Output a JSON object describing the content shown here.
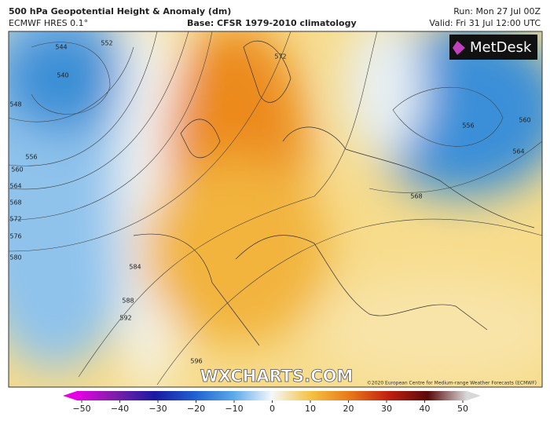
{
  "header": {
    "title": "500 hPa Geopotential Height & Anomaly (dm)",
    "model": "ECMWF HRES 0.1°",
    "base": "Base: CFSR 1979-2010 climatology",
    "run": "Run: Mon 27 Jul 00Z",
    "valid": "Valid: Fri 31 Jul 12:00 UTC"
  },
  "logo": "MetDesk",
  "watermark": "WXCHARTS.COM",
  "copyright": "©2020 European Centre for Medium-range Weather Forecasts (ECMWF)",
  "contour_labels": [
    "544",
    "540",
    "552",
    "548",
    "556",
    "560",
    "564",
    "568",
    "572",
    "576",
    "580",
    "584",
    "588",
    "592",
    "596",
    "572",
    "556",
    "560",
    "564",
    "568"
  ],
  "colorbar": {
    "ticks": [
      {
        "value": -50,
        "label": "−50"
      },
      {
        "value": -40,
        "label": "−40"
      },
      {
        "value": -30,
        "label": "−30"
      },
      {
        "value": -20,
        "label": "−20"
      },
      {
        "value": -10,
        "label": "−10"
      },
      0,
      10,
      20,
      30,
      40,
      50
    ],
    "lim": [
      -50,
      50
    ]
  }
}
